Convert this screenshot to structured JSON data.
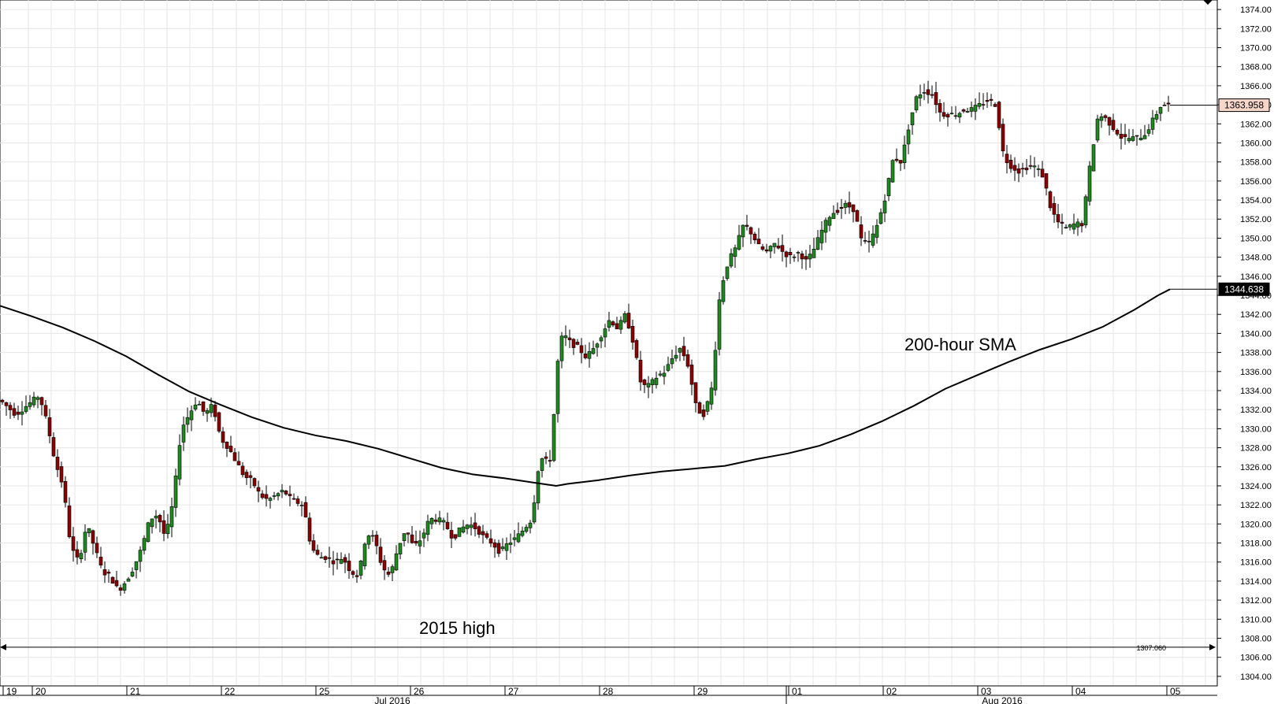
{
  "chart_data": {
    "type": "candlestick",
    "instrument_hint": "hourly OHLC",
    "y_axis": {
      "min": 1303.0,
      "max": 1375.0,
      "ticks": [
        1304.0,
        1306.0,
        1308.0,
        1310.0,
        1312.0,
        1314.0,
        1316.0,
        1318.0,
        1320.0,
        1322.0,
        1324.0,
        1326.0,
        1328.0,
        1330.0,
        1332.0,
        1334.0,
        1336.0,
        1338.0,
        1340.0,
        1342.0,
        1344.0,
        1346.0,
        1348.0,
        1350.0,
        1352.0,
        1354.0,
        1356.0,
        1358.0,
        1360.0,
        1362.0,
        1364.0,
        1366.0,
        1368.0,
        1370.0,
        1372.0,
        1374.0
      ],
      "tick_labels": [
        "1304.00",
        "1306.00",
        "1308.00",
        "1310.00",
        "1312.00",
        "1314.00",
        "1316.00",
        "1318.00",
        "1320.00",
        "1322.00",
        "1324.00",
        "1326.00",
        "1328.00",
        "1330.00",
        "1332.00",
        "1334.00",
        "1336.00",
        "1338.00",
        "1340.00",
        "1342.00",
        "1344.00",
        "1346.00",
        "1348.00",
        "1350.00",
        "1352.00",
        "1354.00",
        "1356.00",
        "1358.00",
        "1360.00",
        "1362.00",
        "1364.00",
        "1366.00",
        "1368.00",
        "1370.00",
        "1372.00",
        "1374.00"
      ]
    },
    "x_axis": {
      "day_labels": [
        "19",
        "20",
        "21",
        "22",
        "25",
        "26",
        "27",
        "28",
        "29",
        "01",
        "02",
        "03",
        "04",
        "05"
      ],
      "month_labels": [
        "Jul 2016",
        "Aug 2016"
      ]
    },
    "grid": true,
    "price_labels": {
      "last": "1363.958",
      "sma_last": "1344.638",
      "level": "1307.060"
    },
    "levels": {
      "last": 1363.958,
      "sma_last": 1344.638,
      "horizontal": 1307.06
    },
    "annotations": {
      "sma": "200-hour SMA",
      "high": "2015 high"
    },
    "sma_line": [
      [
        0,
        1342.9
      ],
      [
        40,
        1341.8
      ],
      [
        80,
        1340.6
      ],
      [
        120,
        1339.2
      ],
      [
        160,
        1337.6
      ],
      [
        200,
        1335.7
      ],
      [
        240,
        1333.9
      ],
      [
        280,
        1332.5
      ],
      [
        320,
        1331.2
      ],
      [
        360,
        1330.1
      ],
      [
        400,
        1329.3
      ],
      [
        440,
        1328.7
      ],
      [
        480,
        1327.9
      ],
      [
        520,
        1326.9
      ],
      [
        560,
        1325.9
      ],
      [
        600,
        1325.2
      ],
      [
        640,
        1324.8
      ],
      [
        680,
        1324.3
      ],
      [
        706,
        1324.0
      ],
      [
        720,
        1324.2
      ],
      [
        760,
        1324.6
      ],
      [
        800,
        1325.1
      ],
      [
        840,
        1325.5
      ],
      [
        880,
        1325.8
      ],
      [
        920,
        1326.1
      ],
      [
        960,
        1326.8
      ],
      [
        1000,
        1327.4
      ],
      [
        1040,
        1328.2
      ],
      [
        1080,
        1329.4
      ],
      [
        1120,
        1330.8
      ],
      [
        1160,
        1332.4
      ],
      [
        1200,
        1334.2
      ],
      [
        1240,
        1335.6
      ],
      [
        1280,
        1337.0
      ],
      [
        1320,
        1338.3
      ],
      [
        1360,
        1339.4
      ],
      [
        1400,
        1340.7
      ],
      [
        1440,
        1342.5
      ],
      [
        1470,
        1344.0
      ],
      [
        1485,
        1344.638
      ]
    ],
    "candles_anchor": [
      [
        0,
        1333.0
      ],
      [
        20,
        1331.5
      ],
      [
        35,
        1332.5
      ],
      [
        50,
        1333.5
      ],
      [
        60,
        1330.5
      ],
      [
        70,
        1326.5
      ],
      [
        80,
        1324.0
      ],
      [
        90,
        1317.5
      ],
      [
        100,
        1316.0
      ],
      [
        110,
        1320.0
      ],
      [
        120,
        1317.5
      ],
      [
        130,
        1315.0
      ],
      [
        140,
        1314.5
      ],
      [
        150,
        1313.0
      ],
      [
        160,
        1314.0
      ],
      [
        170,
        1315.5
      ],
      [
        180,
        1317.5
      ],
      [
        190,
        1320.5
      ],
      [
        200,
        1321.0
      ],
      [
        210,
        1318.5
      ],
      [
        220,
        1322.5
      ],
      [
        230,
        1330.0
      ],
      [
        240,
        1331.5
      ],
      [
        250,
        1333.0
      ],
      [
        260,
        1331.5
      ],
      [
        270,
        1332.5
      ],
      [
        280,
        1329.0
      ],
      [
        290,
        1328.0
      ],
      [
        300,
        1326.5
      ],
      [
        310,
        1325.0
      ],
      [
        320,
        1324.5
      ],
      [
        330,
        1323.0
      ],
      [
        340,
        1322.5
      ],
      [
        350,
        1323.0
      ],
      [
        360,
        1323.5
      ],
      [
        370,
        1322.5
      ],
      [
        385,
        1322.0
      ],
      [
        395,
        1317.5
      ],
      [
        405,
        1316.5
      ],
      [
        415,
        1316.5
      ],
      [
        425,
        1316.0
      ],
      [
        435,
        1316.5
      ],
      [
        445,
        1315.0
      ],
      [
        455,
        1314.5
      ],
      [
        465,
        1319.0
      ],
      [
        475,
        1318.5
      ],
      [
        485,
        1315.5
      ],
      [
        495,
        1314.5
      ],
      [
        505,
        1317.5
      ],
      [
        515,
        1319.5
      ],
      [
        525,
        1317.5
      ],
      [
        535,
        1318.5
      ],
      [
        545,
        1320.5
      ],
      [
        555,
        1320.5
      ],
      [
        565,
        1320.0
      ],
      [
        575,
        1318.5
      ],
      [
        585,
        1319.5
      ],
      [
        595,
        1320.0
      ],
      [
        605,
        1319.5
      ],
      [
        615,
        1318.5
      ],
      [
        625,
        1318.0
      ],
      [
        635,
        1317.0
      ],
      [
        645,
        1318.0
      ],
      [
        655,
        1318.5
      ],
      [
        665,
        1319.5
      ],
      [
        675,
        1320.5
      ],
      [
        685,
        1327.0
      ],
      [
        695,
        1326.5
      ],
      [
        700,
        1327.0
      ],
      [
        706,
        1336.0
      ],
      [
        714,
        1340.0
      ],
      [
        724,
        1339.0
      ],
      [
        734,
        1338.5
      ],
      [
        744,
        1337.5
      ],
      [
        754,
        1338.5
      ],
      [
        764,
        1340.0
      ],
      [
        774,
        1341.5
      ],
      [
        784,
        1340.5
      ],
      [
        794,
        1342.0
      ],
      [
        804,
        1339.0
      ],
      [
        814,
        1334.5
      ],
      [
        824,
        1334.5
      ],
      [
        834,
        1335.5
      ],
      [
        844,
        1336.0
      ],
      [
        854,
        1337.5
      ],
      [
        864,
        1338.5
      ],
      [
        874,
        1336.5
      ],
      [
        884,
        1332.0
      ],
      [
        894,
        1331.5
      ],
      [
        904,
        1334.5
      ],
      [
        914,
        1344.5
      ],
      [
        924,
        1347.5
      ],
      [
        934,
        1349.0
      ],
      [
        944,
        1351.5
      ],
      [
        954,
        1350.5
      ],
      [
        964,
        1349.0
      ],
      [
        974,
        1348.5
      ],
      [
        984,
        1349.5
      ],
      [
        994,
        1348.5
      ],
      [
        1004,
        1348.0
      ],
      [
        1014,
        1348.5
      ],
      [
        1024,
        1347.5
      ],
      [
        1034,
        1349.0
      ],
      [
        1044,
        1351.0
      ],
      [
        1054,
        1352.5
      ],
      [
        1064,
        1353.0
      ],
      [
        1074,
        1353.5
      ],
      [
        1084,
        1353.0
      ],
      [
        1094,
        1349.5
      ],
      [
        1104,
        1349.5
      ],
      [
        1114,
        1351.5
      ],
      [
        1124,
        1354.5
      ],
      [
        1134,
        1358.5
      ],
      [
        1144,
        1358.0
      ],
      [
        1154,
        1362.0
      ],
      [
        1164,
        1365.0
      ],
      [
        1174,
        1365.5
      ],
      [
        1184,
        1365.0
      ],
      [
        1194,
        1363.0
      ],
      [
        1204,
        1363.0
      ],
      [
        1214,
        1363.0
      ],
      [
        1224,
        1363.5
      ],
      [
        1234,
        1363.5
      ],
      [
        1244,
        1364.0
      ],
      [
        1254,
        1364.5
      ],
      [
        1264,
        1364.0
      ],
      [
        1274,
        1358.5
      ],
      [
        1284,
        1357.5
      ],
      [
        1294,
        1357.0
      ],
      [
        1304,
        1357.5
      ],
      [
        1314,
        1357.5
      ],
      [
        1324,
        1356.5
      ],
      [
        1334,
        1353.0
      ],
      [
        1344,
        1351.5
      ],
      [
        1354,
        1351.0
      ],
      [
        1364,
        1351.5
      ],
      [
        1374,
        1351.5
      ],
      [
        1384,
        1358.0
      ],
      [
        1394,
        1363.0
      ],
      [
        1404,
        1362.5
      ],
      [
        1414,
        1361.5
      ],
      [
        1424,
        1360.5
      ],
      [
        1434,
        1360.5
      ],
      [
        1444,
        1360.5
      ],
      [
        1454,
        1361.0
      ],
      [
        1464,
        1362.5
      ],
      [
        1474,
        1364.0
      ],
      [
        1485,
        1363.958
      ]
    ]
  }
}
